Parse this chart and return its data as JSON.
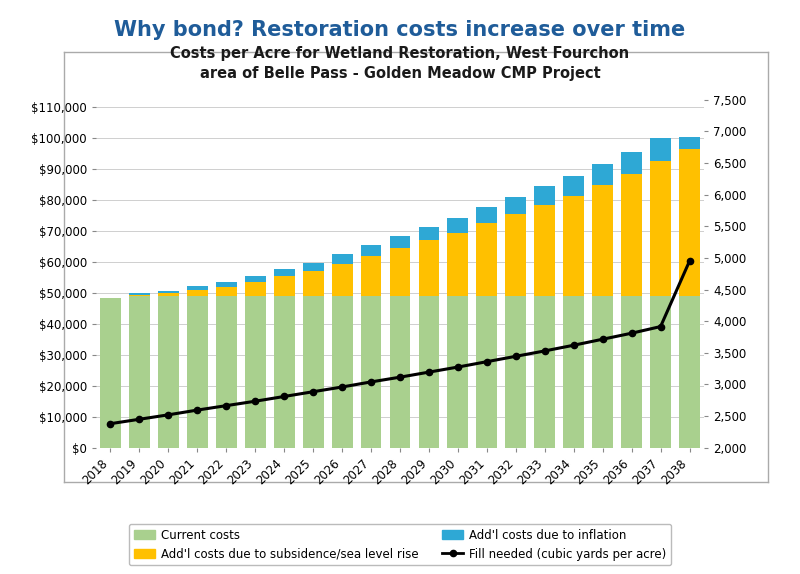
{
  "title_main": "Why bond? Restoration costs increase over time",
  "chart_title": "Costs per Acre for Wetland Restoration, West Fourchon\narea of Belle Pass - Golden Meadow CMP Project",
  "years": [
    2018,
    2019,
    2020,
    2021,
    2022,
    2023,
    2024,
    2025,
    2026,
    2027,
    2028,
    2029,
    2030,
    2031,
    2032,
    2033,
    2034,
    2035,
    2036,
    2037,
    2038
  ],
  "current_costs": [
    48500,
    49000,
    49000,
    49000,
    49000,
    49000,
    49000,
    49000,
    49000,
    49000,
    49000,
    49000,
    49000,
    49000,
    49000,
    49000,
    49000,
    49000,
    49000,
    49000,
    49000
  ],
  "subsidence_costs": [
    0,
    500,
    1000,
    2000,
    3000,
    4500,
    6500,
    8000,
    10500,
    13000,
    15500,
    18000,
    20500,
    23500,
    26500,
    29500,
    32500,
    36000,
    39500,
    43500,
    47500
  ],
  "inflation_costs": [
    0,
    500,
    800,
    1200,
    1600,
    2000,
    2400,
    2800,
    3200,
    3600,
    4000,
    4400,
    4800,
    5200,
    5600,
    6000,
    6400,
    6800,
    7200,
    7600,
    4000
  ],
  "fill_needed": [
    2380,
    2450,
    2520,
    2595,
    2665,
    2735,
    2810,
    2885,
    2960,
    3040,
    3115,
    3195,
    3275,
    3360,
    3445,
    3530,
    3620,
    3715,
    3810,
    3915,
    4950
  ],
  "color_green": "#a9d08e",
  "color_orange": "#ffc000",
  "color_blue": "#2ea8d5",
  "color_line": "#000000",
  "ylim_left": [
    0,
    115000
  ],
  "ylim_right": [
    2000,
    7625
  ],
  "yticks_left": [
    0,
    10000,
    20000,
    30000,
    40000,
    50000,
    60000,
    70000,
    80000,
    90000,
    100000,
    110000
  ],
  "yticks_right": [
    2000,
    2500,
    3000,
    3500,
    4000,
    4500,
    5000,
    5500,
    6000,
    6500,
    7000,
    7500
  ],
  "legend_labels": [
    "Current costs",
    "Add'l costs due to subsidence/sea level rise",
    "Add'l costs due to inflation",
    "Fill needed (cubic yards per acre)"
  ],
  "background_color": "#ffffff",
  "grid_color": "#c8c8c8",
  "outer_box_color": "#aaaaaa",
  "title_color": "#1f5c99",
  "chart_title_color": "#1a1a1a"
}
